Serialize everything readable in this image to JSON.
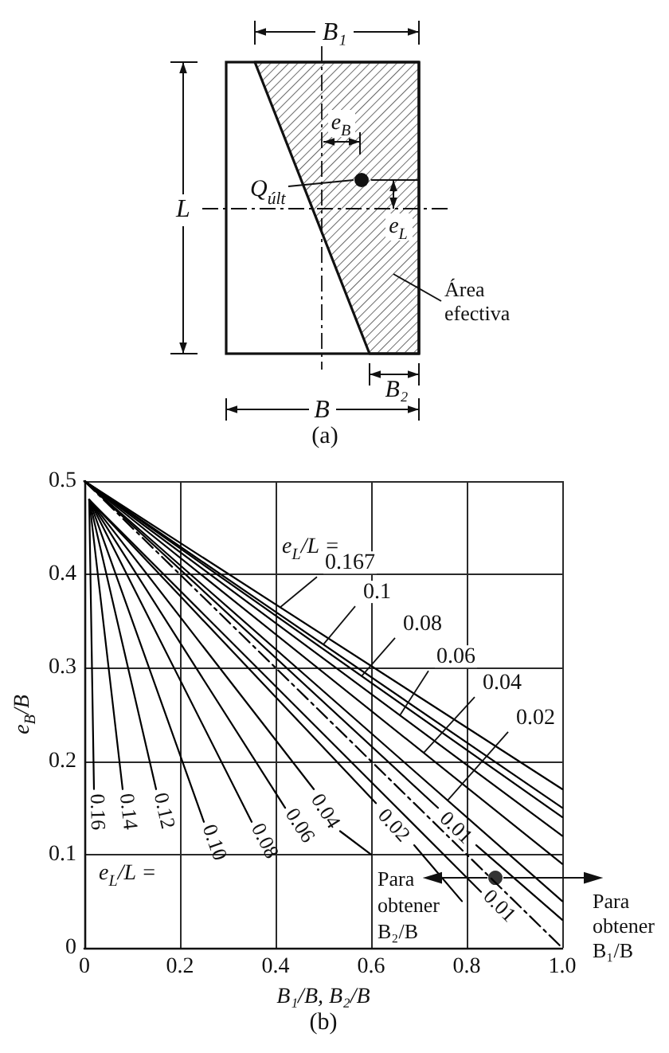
{
  "chart_data": [
    {
      "type": "other",
      "annotations": [
        "B₁",
        "e$_{B}$",
        "Q$_{últ}$",
        "L",
        "e$_{L}$",
        "Área\nefectiva",
        "B₂",
        "B",
        "(a)"
      ]
    },
    {
      "type": "line",
      "xlabel": "B₁/B, B₂/B",
      "ylabel": "e$_{B}$/B",
      "xlim": [
        0,
        1
      ],
      "ylim": [
        0,
        0.5
      ],
      "xticks": [
        0,
        0.2,
        0.4,
        0.6,
        0.8,
        {
          "value": 1,
          "label": "1.0"
        }
      ],
      "yticks": [
        0,
        0.1,
        0.2,
        0.3,
        0.4,
        0.5
      ],
      "grid": true,
      "marker": "none",
      "line_style": "solid",
      "series": [
        {
          "color": "#000000",
          "x": [
            0,
            1
          ],
          "values": [
            0.5,
            0.17
          ]
        },
        {
          "color": "#000000",
          "x": [
            0,
            1
          ],
          "values": [
            0.5,
            0.15
          ]
        },
        {
          "color": "#000000",
          "x": [
            0,
            1
          ],
          "values": [
            0.5,
            0.14
          ]
        },
        {
          "color": "#000000",
          "x": [
            0,
            1
          ],
          "values": [
            0.5,
            0.12
          ]
        },
        {
          "color": "#000000",
          "x": [
            0,
            1
          ],
          "values": [
            0.5,
            0.09
          ]
        },
        {
          "color": "#000000",
          "x": [
            0,
            1
          ],
          "values": [
            0.5,
            0.05
          ]
        },
        {
          "name": "0.01",
          "color": "#000000",
          "x": [
            0,
            0.74,
            0.78,
            0.82,
            1
          ],
          "values": [
            0.5,
            0.15,
            null,
            0.11,
            0.03
          ]
        },
        {
          "color": "#000000",
          "x": [
            0,
            1
          ],
          "values": [
            0.5,
            0
          ],
          "line_style": "dashed"
        },
        {
          "name": "0.16",
          "color": "#000000",
          "x": [
            0.01,
            0.02
          ],
          "values": [
            0.48,
            0.17
          ]
        },
        {
          "name": "0.14",
          "color": "#000000",
          "x": [
            0.01,
            0.08
          ],
          "values": [
            0.48,
            0.17
          ]
        },
        {
          "name": "0.12",
          "color": "#000000",
          "x": [
            0.01,
            0.15
          ],
          "values": [
            0.48,
            0.17
          ]
        },
        {
          "name": "0.10",
          "color": "#000000",
          "x": [
            0.01,
            0.25
          ],
          "values": [
            0.48,
            0.135
          ]
        },
        {
          "name": "0.08",
          "color": "#000000",
          "x": [
            0.01,
            0.35
          ],
          "values": [
            0.48,
            0.135
          ]
        },
        {
          "name": "0.06",
          "color": "#000000",
          "x": [
            0.01,
            0.42
          ],
          "values": [
            0.48,
            0.15
          ]
        },
        {
          "name": "0.04",
          "color": "#000000",
          "x": [
            0.01,
            0.48,
            0.51,
            0.535,
            0.6
          ],
          "values": [
            0.48,
            0.17,
            null,
            0.125,
            0.1
          ]
        },
        {
          "name": "0.02",
          "color": "#000000",
          "x": [
            0.01,
            0.61,
            0.65,
            0.69,
            0.79
          ],
          "values": [
            0.48,
            0.155,
            null,
            0.11,
            0.05
          ]
        },
        {
          "name": "0.01",
          "color": "#000000",
          "x": [
            0.01,
            0.83
          ],
          "values": [
            0.48,
            0.06
          ]
        },
        {
          "type": "scatter",
          "color": "#000000",
          "marker": "circle",
          "x": [
            0.86
          ],
          "values": [
            0.075
          ]
        }
      ],
      "annotations": [
        {
          "text": "0.167",
          "x": 0.41,
          "y": 0.365
        },
        {
          "text": "0.1",
          "x": 0.5,
          "y": 0.325
        },
        {
          "text": "0.08",
          "x": 0.58,
          "y": 0.291
        },
        {
          "text": "0.06",
          "x": 0.66,
          "y": 0.249
        },
        {
          "text": "0.04",
          "x": 0.71,
          "y": 0.209
        },
        {
          "text": "0.02",
          "x": 0.76,
          "y": 0.158
        },
        "e$_{L}$/L =",
        "e$_{L}$/L =",
        {
          "text": "Para\nobtener\nB₂/B",
          "x": 0.86,
          "y": 0.075
        },
        {
          "text": "Para\nobtener\nB₁/B",
          "x": 0.86,
          "y": 0.075
        },
        "(b)"
      ]
    }
  ]
}
